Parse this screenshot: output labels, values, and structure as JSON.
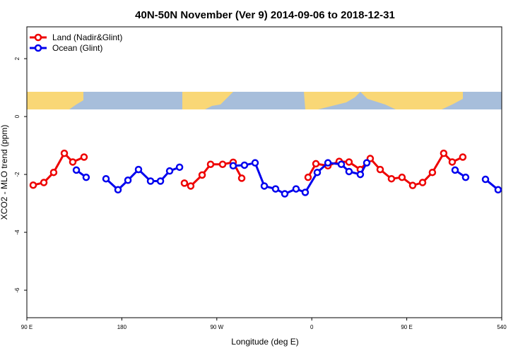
{
  "chart_data": {
    "type": "line",
    "title": "40N-50N November (Ver 9)   2014-09-06 to 2018-12-31",
    "x_label": "Longitude (deg E)",
    "y_label": "XCO2 - MLO trend (ppm)",
    "xlim": [
      90,
      540
    ],
    "ylim": [
      -6.95,
      3.1
    ],
    "xticks": [
      {
        "value": 90,
        "label": "90 E"
      },
      180,
      {
        "value": 270,
        "label": "90 W"
      },
      {
        "value": 360,
        "label": "0"
      },
      {
        "value": 450,
        "label": "90 E"
      },
      540
    ],
    "yticks": [
      -6,
      -4,
      -2,
      0,
      2
    ],
    "legend": "top-left",
    "series": [
      {
        "name": "Land (Nadir&Glint)",
        "color": "#ee0000",
        "x": [
          96.0,
          106.1,
          115.4,
          125.5,
          133.5,
          144.2,
          null,
          239.3,
          245.3,
          256.1,
          264.1,
          275.5,
          285.5,
          293.6,
          null,
          356.5,
          363.9,
          375.3,
          386.0,
          395.3,
          406.0,
          415.4,
          424.8,
          435.5,
          445.5,
          455.6,
          465.0,
          474.3,
          485.0,
          493.1,
          503.1
        ],
        "values": [
          -2.37,
          -2.28,
          -1.93,
          -1.27,
          -1.57,
          -1.4,
          null,
          -2.3,
          -2.4,
          -2.02,
          -1.65,
          -1.65,
          -1.58,
          -2.13,
          null,
          -2.1,
          -1.63,
          -1.7,
          -1.55,
          -1.57,
          -1.83,
          -1.45,
          -1.83,
          -2.15,
          -2.1,
          -2.38,
          -2.28,
          -1.93,
          -1.27,
          -1.57,
          -1.4
        ]
      },
      {
        "name": "Ocean (Glint)",
        "color": "#0000ee",
        "x": [
          136.9,
          146.2,
          null,
          165.0,
          176.4,
          185.8,
          195.8,
          207.2,
          216.6,
          225.3,
          234.7,
          null,
          285.5,
          296.2,
          306.3,
          315.0,
          325.7,
          334.4,
          345.1,
          353.8,
          365.2,
          375.3,
          388.0,
          395.3,
          406.0,
          412.1,
          null,
          495.8,
          505.8,
          null,
          524.6,
          536.6
        ],
        "values": [
          -1.85,
          -2.1,
          null,
          -2.15,
          -2.53,
          -2.2,
          -1.83,
          -2.23,
          -2.23,
          -1.88,
          -1.75,
          null,
          -1.7,
          -1.68,
          -1.6,
          -2.4,
          -2.5,
          -2.67,
          -2.5,
          -2.62,
          -1.93,
          -1.6,
          -1.65,
          -1.9,
          -2.0,
          -1.6,
          null,
          -1.85,
          -2.1,
          null,
          -2.17,
          -2.53
        ]
      }
    ]
  }
}
